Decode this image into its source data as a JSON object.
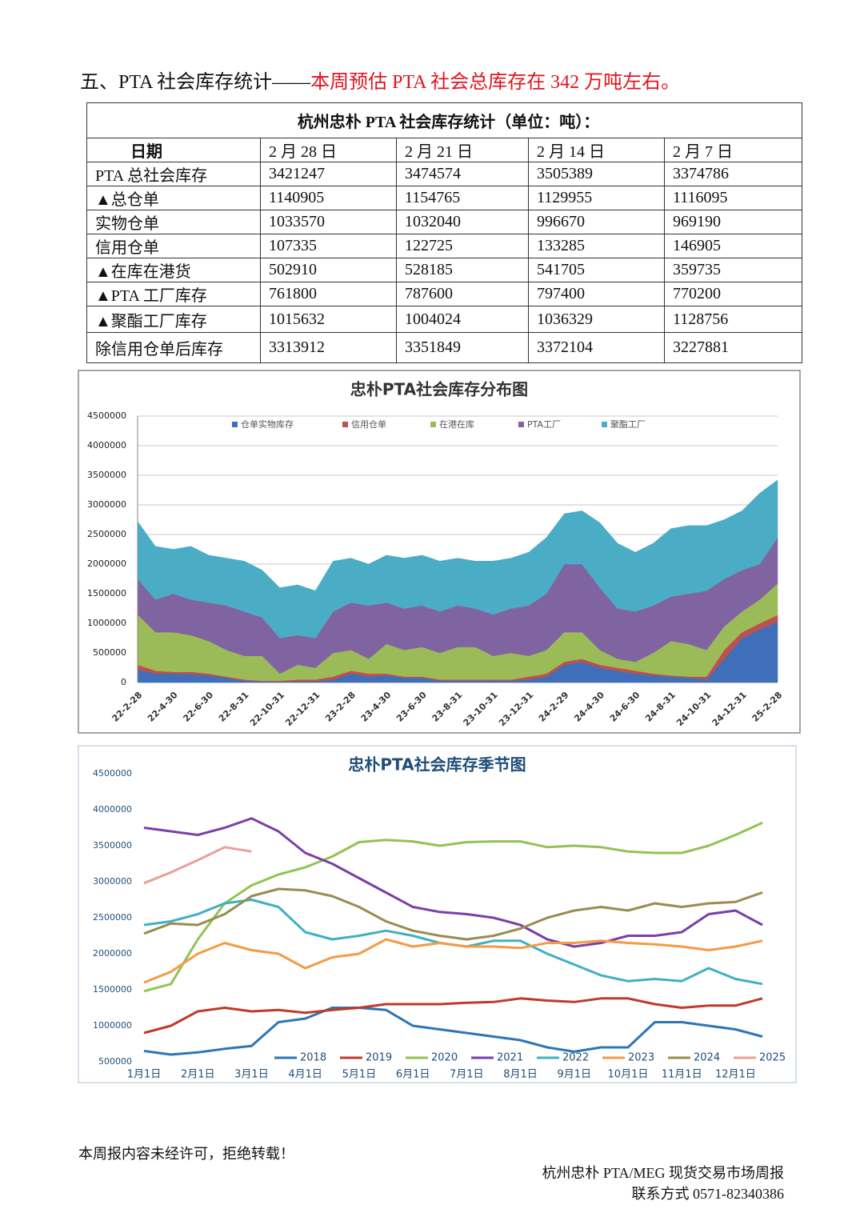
{
  "heading": {
    "prefix": "五、PTA 社会库存统计——",
    "highlight": "本周预估 PTA 社会总库存在 342 万吨左右。"
  },
  "table": {
    "title": "杭州忠朴 PTA 社会库存统计（单位：吨）：",
    "header": [
      "日期",
      "2 月 28 日",
      "2 月 21 日",
      "2 月 14 日",
      "2 月 7 日"
    ],
    "rows": [
      [
        "PTA 总社会库存",
        3421247,
        3474574,
        3505389,
        3374786
      ],
      [
        "▲总仓单",
        1140905,
        1154765,
        1129955,
        1116095
      ],
      [
        "实物仓单",
        1033570,
        1032040,
        996670,
        969190
      ],
      [
        "信用仓单",
        107335,
        122725,
        133285,
        146905
      ],
      [
        "▲在库在港货",
        502910,
        528185,
        541705,
        359735
      ],
      [
        "▲PTA 工厂库存",
        761800,
        787600,
        797400,
        770200
      ],
      [
        "▲聚酯工厂库存",
        1015632,
        1004024,
        1036329,
        1128756
      ],
      [
        "除信用仓单后库存",
        3313912,
        3351849,
        3372104,
        3227881
      ]
    ]
  },
  "chart_data": [
    {
      "type": "area",
      "stacked": true,
      "title": "忠朴PTA社会库存分布图",
      "legend": "top",
      "grid": true,
      "categories": [
        "22-2-28",
        null,
        "22-4-30",
        null,
        "22-6-30",
        null,
        "22-8-31",
        null,
        "22-10-31",
        null,
        "22-12-31",
        null,
        "23-2-28",
        null,
        "23-4-30",
        null,
        "23-6-30",
        null,
        "23-8-31",
        null,
        "23-10-31",
        null,
        "23-12-31",
        null,
        "24-2-29",
        null,
        "24-4-30",
        null,
        "24-6-30",
        null,
        "24-8-31",
        null,
        "24-10-31",
        null,
        "24-12-31",
        null,
        "25-2-28"
      ],
      "ylim": [
        0,
        4500000
      ],
      "yticks": [
        0,
        500000,
        1000000,
        1500000,
        2000000,
        2500000,
        3000000,
        3500000,
        4000000,
        4500000
      ],
      "series": [
        {
          "name": "仓单实物库存",
          "color": "#3f6fb8",
          "values": [
            220000,
            150000,
            150000,
            140000,
            120000,
            80000,
            30000,
            20000,
            10000,
            20000,
            20000,
            50000,
            150000,
            100000,
            120000,
            80000,
            80000,
            30000,
            30000,
            30000,
            30000,
            30000,
            50000,
            100000,
            300000,
            350000,
            250000,
            200000,
            150000,
            120000,
            100000,
            80000,
            50000,
            400000,
            750000,
            900000,
            1030000
          ]
        },
        {
          "name": "信用仓单",
          "color": "#c0504d",
          "values": [
            80000,
            50000,
            30000,
            40000,
            30000,
            20000,
            20000,
            10000,
            20000,
            30000,
            30000,
            50000,
            50000,
            50000,
            30000,
            20000,
            20000,
            20000,
            20000,
            20000,
            20000,
            20000,
            50000,
            50000,
            50000,
            50000,
            50000,
            50000,
            50000,
            30000,
            20000,
            20000,
            50000,
            150000,
            100000,
            100000,
            110000
          ]
        },
        {
          "name": "在港在库",
          "color": "#9bbb59",
          "values": [
            850000,
            650000,
            670000,
            620000,
            550000,
            450000,
            400000,
            420000,
            120000,
            250000,
            200000,
            400000,
            350000,
            250000,
            500000,
            450000,
            500000,
            450000,
            550000,
            550000,
            400000,
            450000,
            350000,
            400000,
            500000,
            450000,
            250000,
            150000,
            150000,
            350000,
            580000,
            550000,
            450000,
            400000,
            350000,
            400000,
            530000
          ]
        },
        {
          "name": "PTA工厂",
          "color": "#8064a2",
          "values": [
            600000,
            550000,
            650000,
            600000,
            650000,
            750000,
            750000,
            650000,
            600000,
            500000,
            500000,
            700000,
            800000,
            900000,
            700000,
            700000,
            700000,
            700000,
            700000,
            650000,
            700000,
            750000,
            850000,
            950000,
            1150000,
            1150000,
            1050000,
            850000,
            850000,
            800000,
            750000,
            850000,
            1000000,
            800000,
            700000,
            600000,
            780000
          ]
        },
        {
          "name": "聚酯工厂",
          "color": "#4bacc6",
          "values": [
            970000,
            900000,
            750000,
            900000,
            800000,
            800000,
            850000,
            800000,
            850000,
            850000,
            800000,
            850000,
            750000,
            700000,
            800000,
            850000,
            850000,
            850000,
            800000,
            800000,
            900000,
            850000,
            900000,
            950000,
            850000,
            900000,
            1100000,
            1100000,
            1000000,
            1050000,
            1150000,
            1150000,
            1100000,
            1000000,
            1000000,
            1200000,
            970000
          ]
        }
      ]
    },
    {
      "type": "line",
      "title": "忠朴PTA社会库存季节图",
      "legend": "bottom",
      "grid": false,
      "categories": [
        "1月1日",
        null,
        "2月1日",
        null,
        "3月1日",
        null,
        "4月1日",
        null,
        "5月1日",
        null,
        "6月1日",
        null,
        "7月1日",
        null,
        "8月1日",
        null,
        "9月1日",
        null,
        "10月1日",
        null,
        "11月1日",
        null,
        "12月1日",
        null
      ],
      "ylim": [
        500000,
        4500000
      ],
      "yticks": [
        500000,
        1000000,
        1500000,
        2000000,
        2500000,
        3000000,
        3500000,
        4000000,
        4500000
      ],
      "series": [
        {
          "name": "2018",
          "color": "#2e75b6",
          "values": [
            650000,
            600000,
            630000,
            680000,
            720000,
            1050000,
            1100000,
            1250000,
            1250000,
            1220000,
            1000000,
            950000,
            900000,
            850000,
            800000,
            700000,
            640000,
            700000,
            700000,
            1050000,
            1050000,
            1000000,
            950000,
            850000
          ]
        },
        {
          "name": "2019",
          "color": "#c0392b",
          "values": [
            900000,
            1000000,
            1200000,
            1250000,
            1200000,
            1220000,
            1180000,
            1220000,
            1250000,
            1300000,
            1300000,
            1300000,
            1320000,
            1330000,
            1380000,
            1350000,
            1330000,
            1380000,
            1380000,
            1300000,
            1250000,
            1280000,
            1280000,
            1380000
          ]
        },
        {
          "name": "2020",
          "color": "#92c353",
          "values": [
            1480000,
            1580000,
            2200000,
            2700000,
            2950000,
            3100000,
            3200000,
            3350000,
            3550000,
            3580000,
            3560000,
            3500000,
            3550000,
            3560000,
            3560000,
            3480000,
            3500000,
            3480000,
            3420000,
            3400000,
            3400000,
            3500000,
            3650000,
            3820000
          ]
        },
        {
          "name": "2021",
          "color": "#7b3fa8",
          "values": [
            3750000,
            3700000,
            3650000,
            3750000,
            3880000,
            3700000,
            3400000,
            3250000,
            3050000,
            2850000,
            2650000,
            2580000,
            2550000,
            2500000,
            2400000,
            2200000,
            2100000,
            2150000,
            2250000,
            2250000,
            2300000,
            2550000,
            2600000,
            2400000
          ]
        },
        {
          "name": "2022",
          "color": "#3fb0c4",
          "values": [
            2400000,
            2450000,
            2550000,
            2700000,
            2750000,
            2650000,
            2300000,
            2200000,
            2250000,
            2320000,
            2250000,
            2150000,
            2100000,
            2180000,
            2180000,
            2000000,
            1850000,
            1700000,
            1620000,
            1650000,
            1620000,
            1800000,
            1650000,
            1580000
          ]
        },
        {
          "name": "2023",
          "color": "#f59a45",
          "values": [
            1600000,
            1750000,
            2000000,
            2150000,
            2050000,
            2000000,
            1800000,
            1950000,
            2000000,
            2200000,
            2100000,
            2150000,
            2100000,
            2100000,
            2080000,
            2150000,
            2150000,
            2180000,
            2150000,
            2130000,
            2100000,
            2050000,
            2100000,
            2180000
          ]
        },
        {
          "name": "2024",
          "color": "#9a8c4e",
          "values": [
            2280000,
            2420000,
            2400000,
            2550000,
            2800000,
            2900000,
            2880000,
            2800000,
            2650000,
            2450000,
            2320000,
            2250000,
            2200000,
            2250000,
            2350000,
            2500000,
            2600000,
            2650000,
            2600000,
            2700000,
            2650000,
            2700000,
            2720000,
            2850000
          ]
        },
        {
          "name": "2025",
          "color": "#e8a09a",
          "values": [
            2980000,
            3130000,
            3300000,
            3480000,
            3420000,
            null,
            null,
            null,
            null,
            null,
            null,
            null,
            null,
            null,
            null,
            null,
            null,
            null,
            null,
            null,
            null,
            null,
            null,
            null
          ]
        }
      ]
    }
  ],
  "footer": {
    "notice": "本周报内容未经许可，拒绝转载！",
    "publisher": "杭州忠朴 PTA/MEG 现货交易市场周报",
    "contact": "联系方式 0571-82340386"
  }
}
